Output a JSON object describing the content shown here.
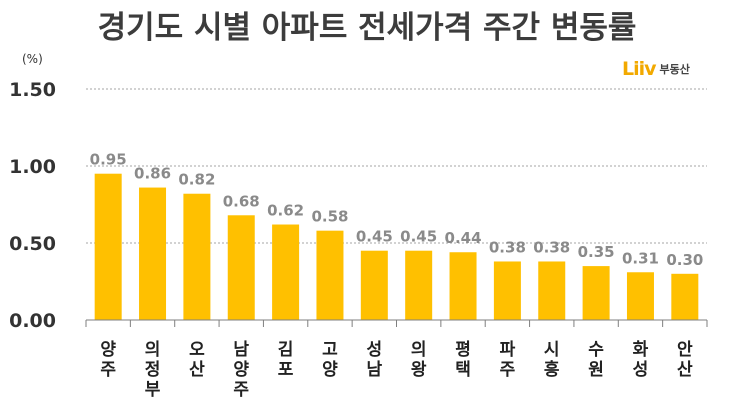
{
  "title": "경기도 시별 아파트 전세가격 주간 변동률",
  "brand": {
    "logo_mark": "Liiv",
    "logo_text": "부동산",
    "accent_color": "#f2a900"
  },
  "chart_data": {
    "type": "bar",
    "unit_label": "(%)",
    "categories": [
      "양주",
      "의정부",
      "오산",
      "남양주",
      "김포",
      "고양",
      "성남",
      "의왕",
      "평택",
      "파주",
      "시흥",
      "수원",
      "화성",
      "안산"
    ],
    "values": [
      0.95,
      0.86,
      0.82,
      0.68,
      0.62,
      0.58,
      0.45,
      0.45,
      0.44,
      0.38,
      0.38,
      0.35,
      0.31,
      0.3
    ],
    "value_labels": [
      "0.95",
      "0.86",
      "0.82",
      "0.68",
      "0.62",
      "0.58",
      "0.45",
      "0.45",
      "0.44",
      "0.38",
      "0.38",
      "0.35",
      "0.31",
      "0.30"
    ],
    "ylim": [
      0,
      1.5
    ],
    "yticks": [
      0,
      0.5,
      1.0,
      1.5
    ],
    "ytick_labels": [
      "0.00",
      "0.50",
      "1.00",
      "1.50"
    ],
    "grid": true,
    "bar_color": "#ffc000",
    "grid_color": "#a6a6a6"
  }
}
